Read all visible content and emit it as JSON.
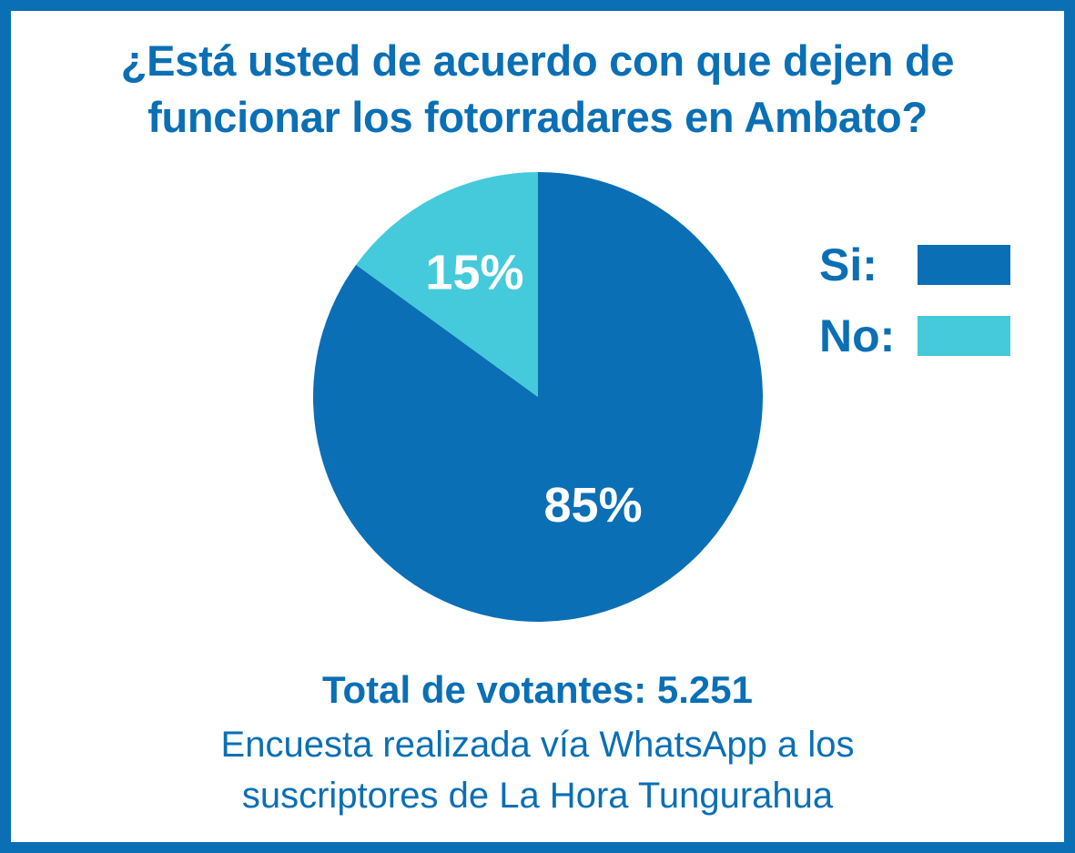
{
  "chart_data": {
    "type": "pie",
    "title": "¿Está usted de acuerdo con que dejen de funcionar los fotorradares en Ambato?",
    "title_lines": [
      "¿Está usted de acuerdo con que dejen de",
      "funcionar los fotorradares en Ambato?"
    ],
    "categories": [
      "Si:",
      "No:"
    ],
    "values": [
      85,
      15
    ],
    "data_labels": [
      "85%",
      "15%"
    ],
    "colors": [
      "#0a6fb5",
      "#45cadb"
    ],
    "legend_position": "right"
  },
  "footer": {
    "total": "Total de votantes: 5.251",
    "note_lines": [
      "Encuesta realizada vía WhatsApp a los",
      "suscriptores de La Hora Tungurahua"
    ]
  },
  "theme": {
    "accent": "#0a6fb5",
    "background": "#ffffff"
  }
}
